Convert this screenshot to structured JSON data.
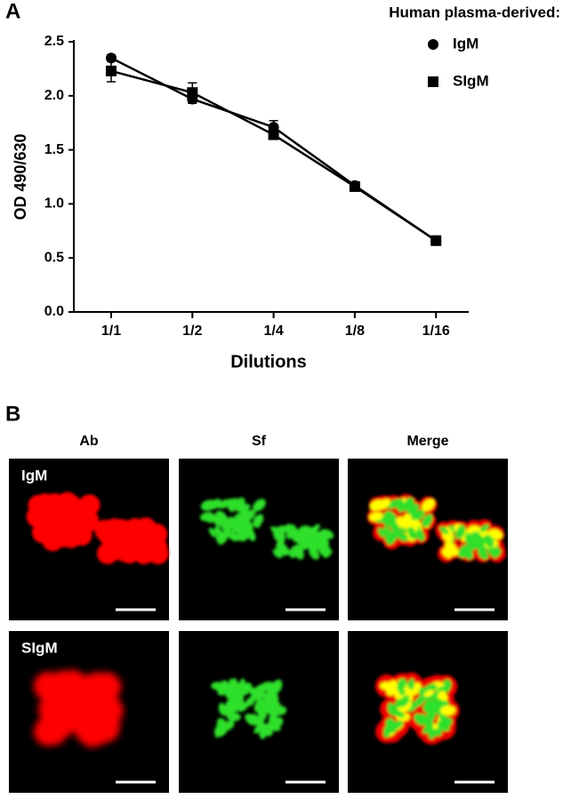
{
  "chart_data": {
    "type": "line",
    "panel_label": "A",
    "legend_title": "Human plasma-derived:",
    "y_label": "OD 490/630",
    "x_label": "Dilutions",
    "categories": [
      "1/1",
      "1/2",
      "1/4",
      "1/8",
      "1/16"
    ],
    "series": [
      {
        "name": "IgM",
        "color": "#000000",
        "marker": "circle",
        "values": [
          2.35,
          1.97,
          1.71,
          1.17,
          0.66
        ],
        "errors": [
          0.03,
          0.04,
          0.06,
          0.02,
          0.03
        ]
      },
      {
        "name": "SIgM",
        "color": "#000000",
        "marker": "square",
        "values": [
          2.23,
          2.03,
          1.64,
          1.16,
          0.66
        ],
        "errors": [
          0.1,
          0.09,
          0.04,
          0.02,
          0.04
        ]
      }
    ],
    "ylim": [
      0,
      2.5
    ],
    "yticks": [
      {
        "value": 0,
        "label": "0.0"
      },
      0.5,
      {
        "value": 1,
        "label": "1.0"
      },
      1.5,
      {
        "value": 2,
        "label": "2.0"
      },
      2.5
    ],
    "grid": false
  },
  "panel_b": {
    "label": "B",
    "columns": [
      "Ab",
      "Sf",
      "Merge"
    ],
    "rows": [
      "IgM",
      "SIgM"
    ]
  }
}
